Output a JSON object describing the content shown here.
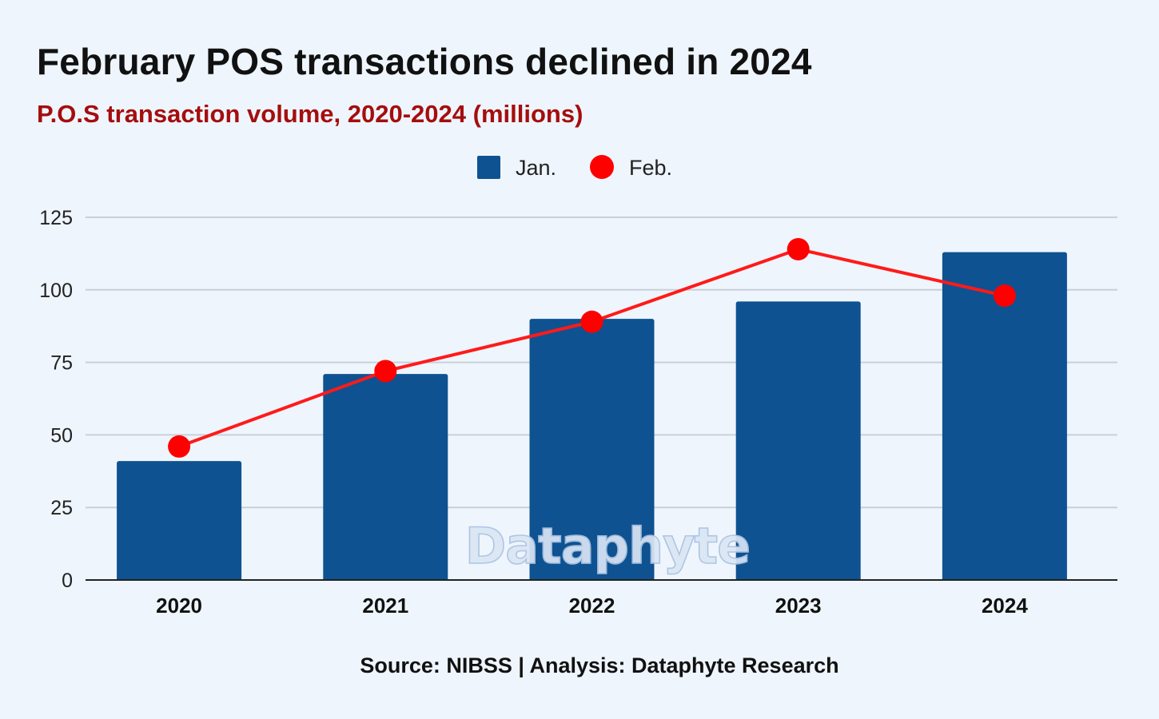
{
  "chart_data": {
    "type": "bar",
    "title": "February POS transactions declined in 2024",
    "subtitle": "P.O.S transaction volume, 2020-2024 (millions)",
    "categories": [
      "2020",
      "2021",
      "2022",
      "2023",
      "2024"
    ],
    "series": [
      {
        "name": "Jan.",
        "type": "bar",
        "values": [
          41,
          71,
          90,
          96,
          113
        ]
      },
      {
        "name": "Feb.",
        "type": "line",
        "values": [
          46,
          72,
          89,
          114,
          98
        ]
      }
    ],
    "xlabel": "",
    "ylabel": "",
    "ylim": [
      0,
      125
    ],
    "yticks": [
      0,
      25,
      50,
      75,
      100,
      125
    ],
    "grid": true,
    "legend_position": "top-center",
    "colors": {
      "bar": "#0e5291",
      "line": "#ff1a1a",
      "marker": "#ff0000",
      "grid": "#c8d0da",
      "axis": "#222222"
    }
  },
  "footer": {
    "source": "Source: NIBSS | Analysis: Dataphyte Research"
  },
  "watermark": {
    "text": "Dataphyte"
  }
}
